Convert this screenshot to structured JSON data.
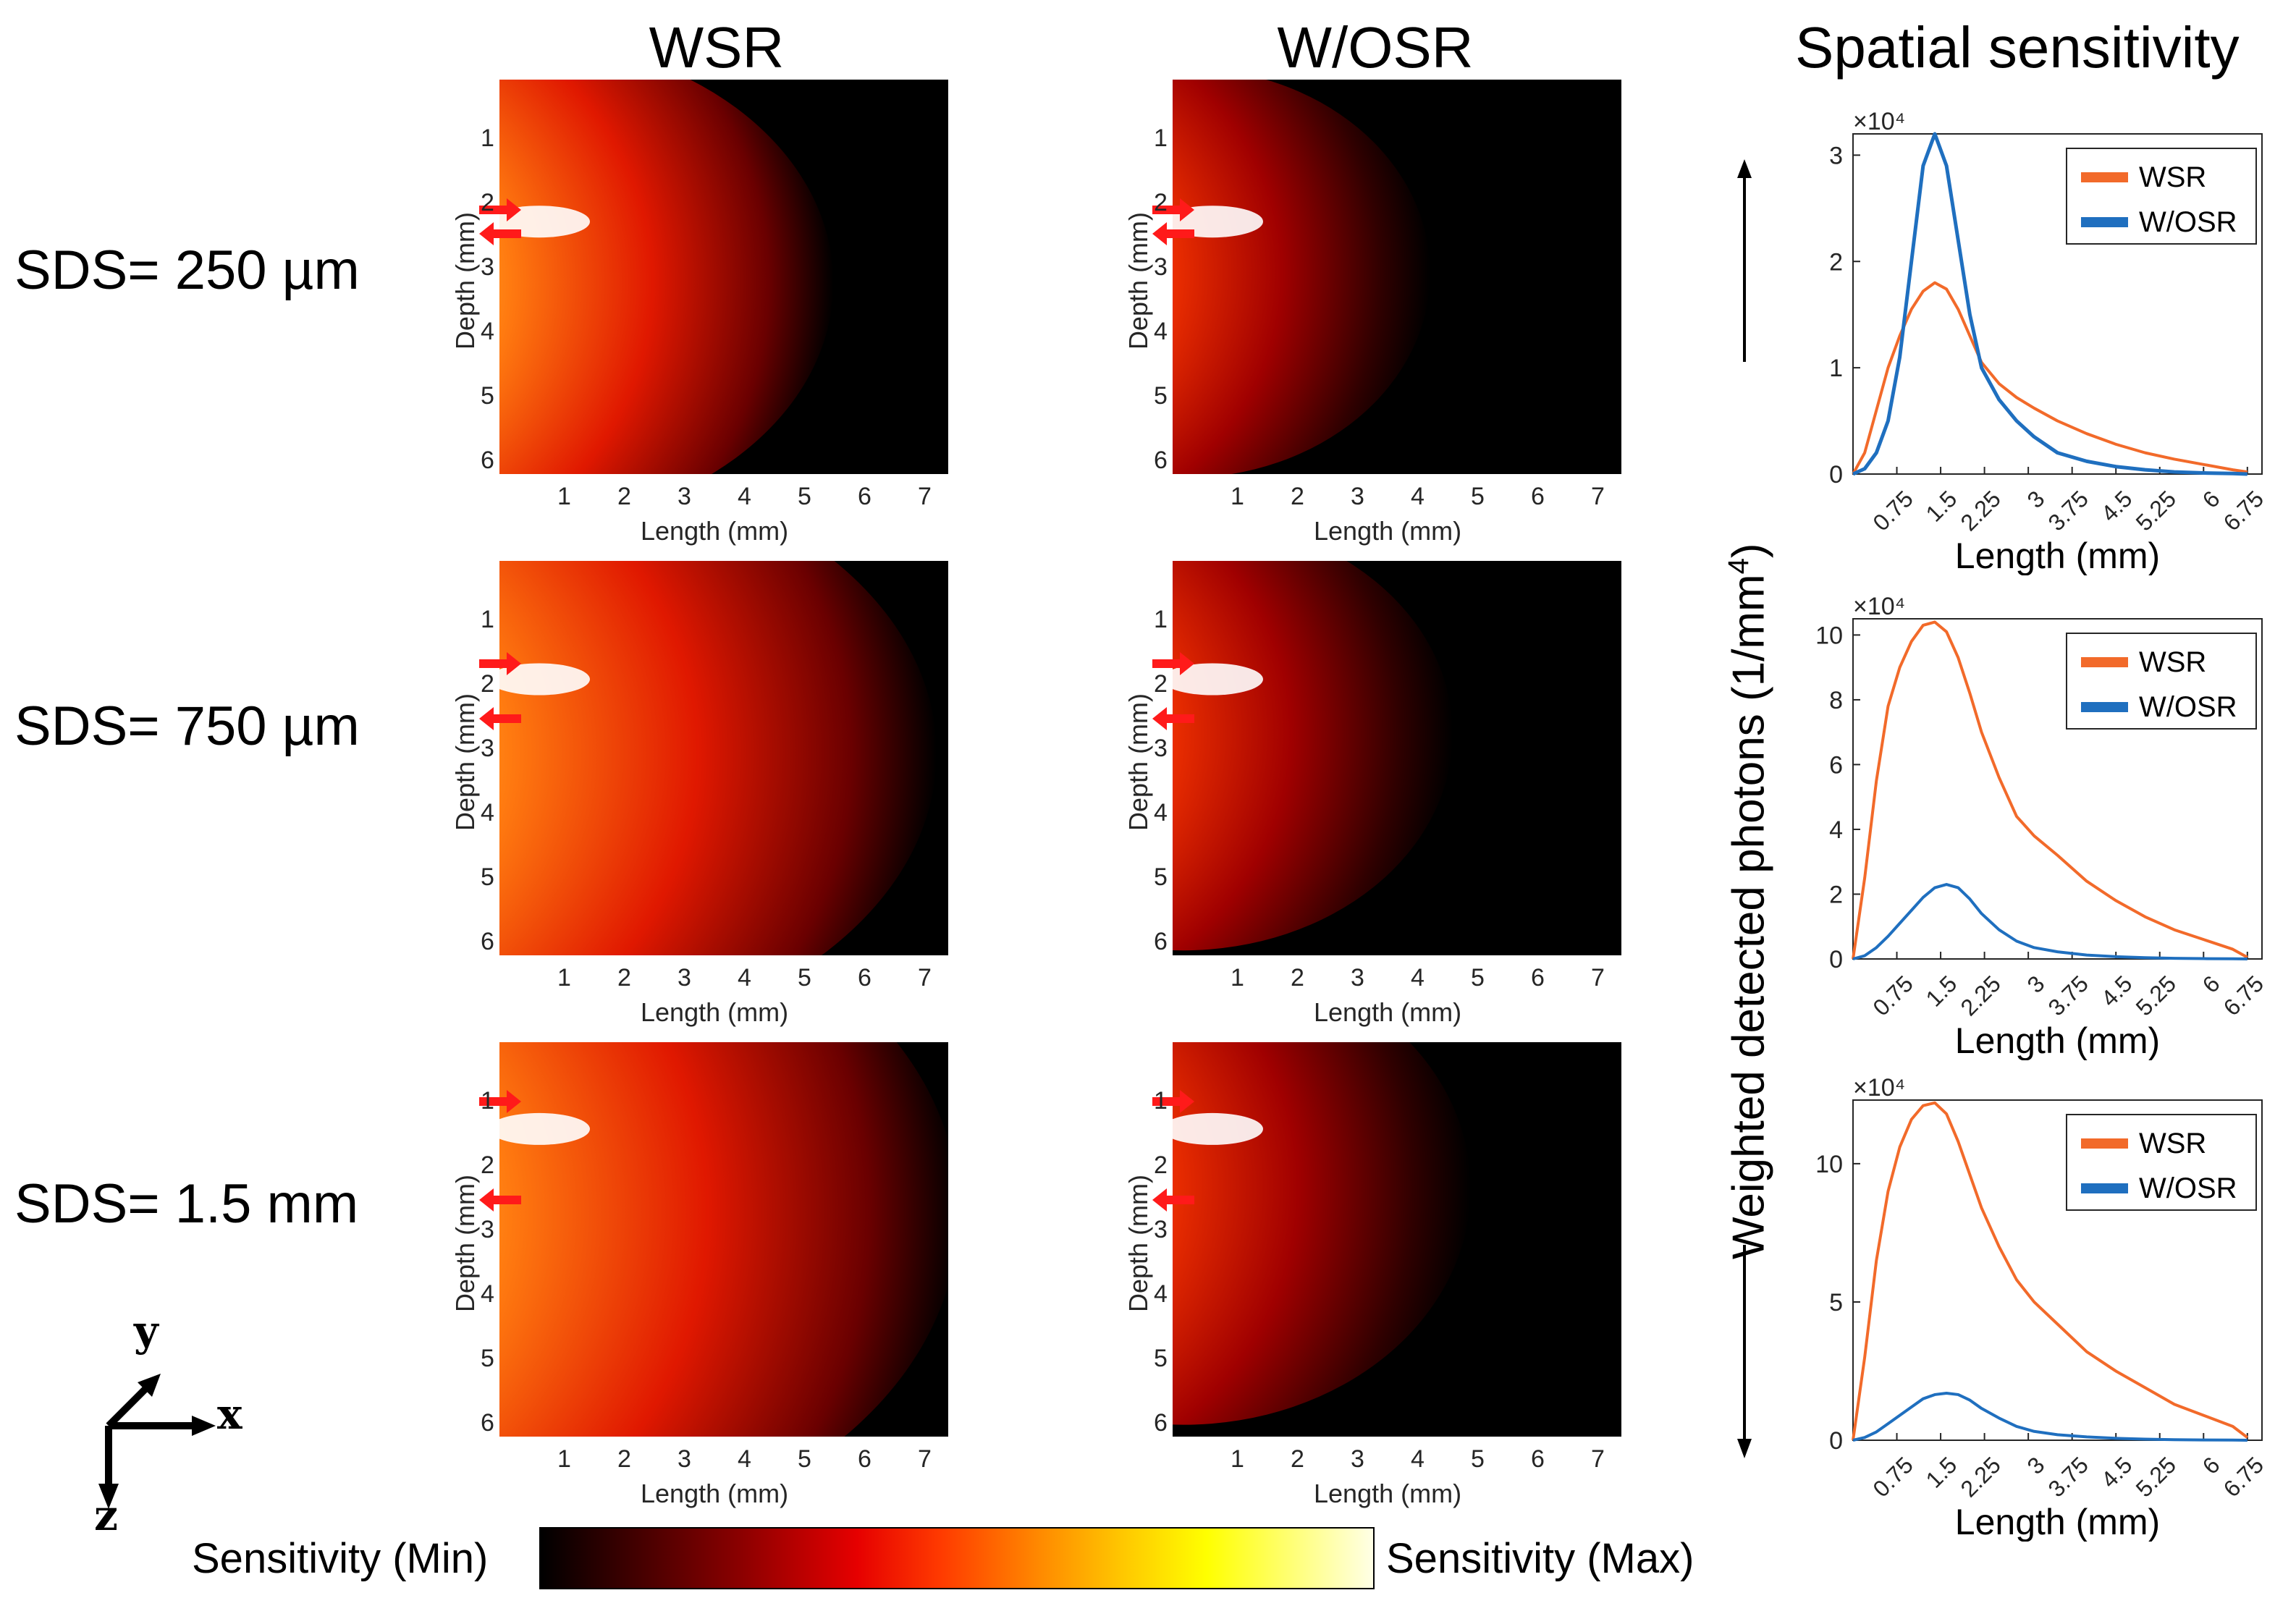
{
  "column_titles": {
    "wsr": "WSR",
    "wosr": "W/OSR",
    "spatial": "Spatial sensitivity"
  },
  "row_labels": [
    "SDS= 250 µm",
    "SDS= 750 µm",
    "SDS= 1.5 mm"
  ],
  "heatmap_axes": {
    "xlabel": "Length (mm)",
    "ylabel": "Depth (mm)",
    "xticks": [
      "1",
      "2",
      "3",
      "4",
      "5",
      "6",
      "7"
    ],
    "yticks": [
      "1",
      "2",
      "3",
      "4",
      "5",
      "6"
    ]
  },
  "colorbar": {
    "min_label": "Sensitivity (Min)",
    "max_label": "Sensitivity (Max)"
  },
  "shared_ylabel": "Weighted detected photons (1/mm",
  "shared_ylabel_sup": "4",
  "shared_ylabel_end": ")",
  "axes_indicator": {
    "y": "y",
    "x": "x",
    "z": "z"
  },
  "colors": {
    "wsr": "#f26a2a",
    "wosr": "#1f6fbf",
    "arrow": "#ff1a1a"
  },
  "chart_data": [
    {
      "type": "line",
      "panel": "SDS= 250 µm",
      "xlabel": "Length (mm)",
      "multiplier": "×10⁴",
      "xticks": [
        "0.75",
        "1.5",
        "2.25",
        "3",
        "3.75",
        "4.5",
        "5.25",
        "6",
        "6.75"
      ],
      "ylim": [
        0,
        3.2
      ],
      "yticks": [
        "0",
        "1",
        "2",
        "3"
      ],
      "legend_position": "top-right",
      "x": [
        0,
        0.2,
        0.4,
        0.6,
        0.8,
        1.0,
        1.2,
        1.4,
        1.6,
        1.8,
        2.0,
        2.2,
        2.5,
        2.8,
        3.1,
        3.5,
        4.0,
        4.5,
        5.0,
        5.5,
        6.0,
        6.5,
        6.75
      ],
      "series": [
        {
          "name": "WSR",
          "values": [
            0,
            0.2,
            0.6,
            1.0,
            1.3,
            1.55,
            1.72,
            1.8,
            1.74,
            1.55,
            1.3,
            1.05,
            0.85,
            0.72,
            0.62,
            0.5,
            0.38,
            0.28,
            0.2,
            0.14,
            0.09,
            0.04,
            0.02
          ]
        },
        {
          "name": "W/OSR",
          "values": [
            0,
            0.05,
            0.2,
            0.5,
            1.1,
            2.0,
            2.9,
            3.2,
            2.9,
            2.2,
            1.5,
            1.0,
            0.7,
            0.5,
            0.35,
            0.2,
            0.12,
            0.07,
            0.04,
            0.02,
            0.01,
            0.005,
            0
          ]
        }
      ]
    },
    {
      "type": "line",
      "panel": "SDS= 750 µm",
      "xlabel": "Length (mm)",
      "multiplier": "×10⁴",
      "xticks": [
        "0.75",
        "1.5",
        "2.25",
        "3",
        "3.75",
        "4.5",
        "5.25",
        "6",
        "6.75"
      ],
      "ylim": [
        0,
        10.5
      ],
      "yticks": [
        "0",
        "2",
        "4",
        "6",
        "8",
        "10"
      ],
      "legend_position": "top-right",
      "x": [
        0,
        0.2,
        0.4,
        0.6,
        0.8,
        1.0,
        1.2,
        1.4,
        1.6,
        1.8,
        2.0,
        2.2,
        2.5,
        2.8,
        3.1,
        3.5,
        4.0,
        4.5,
        5.0,
        5.5,
        6.0,
        6.5,
        6.75
      ],
      "series": [
        {
          "name": "WSR",
          "values": [
            0,
            2.5,
            5.5,
            7.8,
            9.0,
            9.8,
            10.3,
            10.4,
            10.1,
            9.3,
            8.2,
            7.0,
            5.6,
            4.4,
            3.8,
            3.2,
            2.4,
            1.8,
            1.3,
            0.9,
            0.6,
            0.3,
            0.05
          ]
        },
        {
          "name": "W/OSR",
          "values": [
            0,
            0.1,
            0.35,
            0.7,
            1.1,
            1.5,
            1.9,
            2.2,
            2.3,
            2.2,
            1.85,
            1.4,
            0.9,
            0.55,
            0.35,
            0.22,
            0.12,
            0.07,
            0.04,
            0.02,
            0.01,
            0.005,
            0
          ]
        }
      ]
    },
    {
      "type": "line",
      "panel": "SDS= 1.5 mm",
      "xlabel": "Length (mm)",
      "multiplier": "×10⁴",
      "xticks": [
        "0.75",
        "1.5",
        "2.25",
        "3",
        "3.75",
        "4.5",
        "5.25",
        "6",
        "6.75"
      ],
      "ylim": [
        0,
        12.3
      ],
      "yticks": [
        "0",
        "5",
        "10"
      ],
      "legend_position": "top-right",
      "x": [
        0,
        0.2,
        0.4,
        0.6,
        0.8,
        1.0,
        1.2,
        1.4,
        1.6,
        1.8,
        2.0,
        2.2,
        2.5,
        2.8,
        3.1,
        3.5,
        4.0,
        4.5,
        5.0,
        5.5,
        6.0,
        6.5,
        6.75
      ],
      "series": [
        {
          "name": "WSR",
          "values": [
            0,
            3.0,
            6.5,
            9.0,
            10.6,
            11.6,
            12.1,
            12.2,
            11.8,
            10.8,
            9.6,
            8.4,
            7.0,
            5.8,
            5.0,
            4.2,
            3.2,
            2.5,
            1.9,
            1.3,
            0.9,
            0.5,
            0.1
          ]
        },
        {
          "name": "W/OSR",
          "values": [
            0,
            0.1,
            0.3,
            0.6,
            0.9,
            1.2,
            1.5,
            1.65,
            1.7,
            1.65,
            1.45,
            1.15,
            0.8,
            0.5,
            0.32,
            0.2,
            0.12,
            0.07,
            0.04,
            0.02,
            0.01,
            0.005,
            0
          ]
        }
      ]
    }
  ]
}
